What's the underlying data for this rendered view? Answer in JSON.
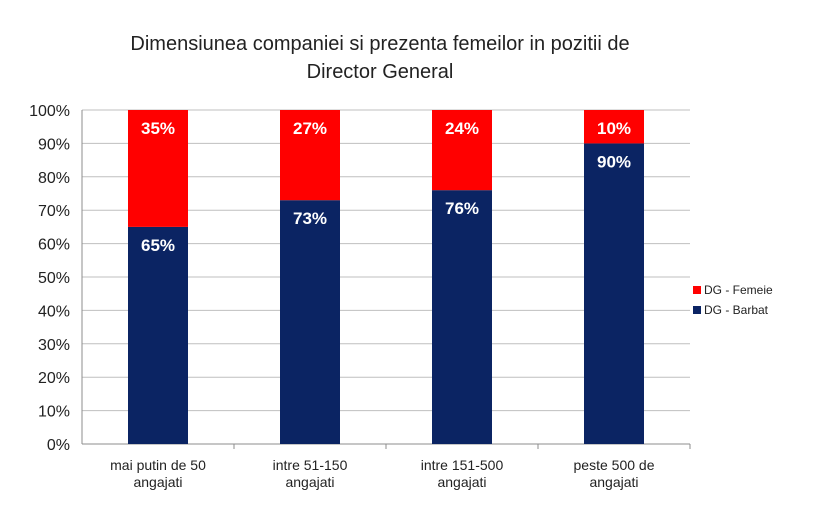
{
  "chart_data": {
    "type": "bar",
    "stacked": true,
    "title_lines": [
      "Dimensiunea companiei si prezenta femeilor in pozitii de",
      "Director General"
    ],
    "categories": [
      [
        "mai putin de 50",
        "angajati"
      ],
      [
        "intre 51-150",
        "angajati"
      ],
      [
        "intre 151-500",
        "angajati"
      ],
      [
        "peste 500 de",
        "angajati"
      ]
    ],
    "series": [
      {
        "name": "DG - Barbat",
        "color": "#0b2463",
        "values": [
          65,
          73,
          76,
          90
        ],
        "labels": [
          "65%",
          "73%",
          "76%",
          "90%"
        ]
      },
      {
        "name": "DG -  Femeie",
        "color": "#ff0000",
        "values": [
          35,
          27,
          24,
          10
        ],
        "labels": [
          "35%",
          "27%",
          "24%",
          "10%"
        ]
      }
    ],
    "yticks": [
      "0%",
      "10%",
      "20%",
      "30%",
      "40%",
      "50%",
      "60%",
      "70%",
      "80%",
      "90%",
      "100%"
    ],
    "ylim": [
      0,
      100
    ],
    "grid": true,
    "legend_position": "right"
  }
}
